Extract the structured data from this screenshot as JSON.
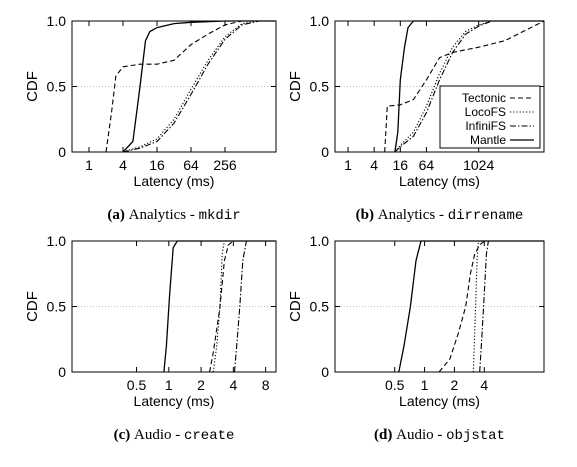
{
  "chart_data": [
    {
      "type": "line",
      "caption_label": "(a)",
      "caption_text": "Analytics - ",
      "caption_code": "mkdir",
      "xlabel": "Latency (ms)",
      "ylabel": "CDF",
      "xscale": "log2",
      "xlim": [
        0.5,
        2048
      ],
      "ylim": [
        0,
        1
      ],
      "xticks": [
        1,
        4,
        16,
        64,
        256
      ],
      "xtick_labels": [
        "1",
        "4",
        "16",
        "64",
        "256"
      ],
      "yticks": [
        0,
        0.5,
        1
      ],
      "ytick_labels": [
        "0",
        "0.5",
        "1.0"
      ],
      "grid": "horizontal-dotted",
      "series": [
        {
          "name": "Tectonic",
          "style": "dashed",
          "points": [
            [
              2,
              0
            ],
            [
              2.5,
              0.3
            ],
            [
              3,
              0.58
            ],
            [
              4,
              0.65
            ],
            [
              8,
              0.67
            ],
            [
              16,
              0.67
            ],
            [
              32,
              0.7
            ],
            [
              64,
              0.82
            ],
            [
              128,
              0.9
            ],
            [
              256,
              0.97
            ],
            [
              512,
              1
            ],
            [
              2048,
              1
            ]
          ]
        },
        {
          "name": "LocoFS",
          "style": "dotted",
          "points": [
            [
              4,
              0
            ],
            [
              8,
              0.04
            ],
            [
              16,
              0.1
            ],
            [
              32,
              0.25
            ],
            [
              64,
              0.48
            ],
            [
              128,
              0.7
            ],
            [
              256,
              0.88
            ],
            [
              512,
              0.98
            ],
            [
              1024,
              1
            ],
            [
              2048,
              1
            ]
          ]
        },
        {
          "name": "InfiniFS",
          "style": "dashdot",
          "points": [
            [
              4,
              0
            ],
            [
              8,
              0.03
            ],
            [
              16,
              0.08
            ],
            [
              32,
              0.22
            ],
            [
              64,
              0.44
            ],
            [
              128,
              0.67
            ],
            [
              256,
              0.86
            ],
            [
              512,
              0.97
            ],
            [
              1024,
              1
            ],
            [
              2048,
              1
            ]
          ]
        },
        {
          "name": "Mantle",
          "style": "solid",
          "points": [
            [
              4,
              0
            ],
            [
              6,
              0.08
            ],
            [
              8,
              0.5
            ],
            [
              10,
              0.85
            ],
            [
              12,
              0.92
            ],
            [
              16,
              0.95
            ],
            [
              32,
              0.98
            ],
            [
              64,
              0.99
            ],
            [
              256,
              1
            ],
            [
              2048,
              1
            ]
          ]
        }
      ]
    },
    {
      "type": "line",
      "caption_label": "(b)",
      "caption_text": "Analytics - ",
      "caption_code": "dirrename",
      "xlabel": "Latency (ms)",
      "ylabel": "CDF",
      "xscale": "log2",
      "xlim": [
        0.5,
        32768
      ],
      "ylim": [
        0,
        1
      ],
      "xticks": [
        1,
        4,
        16,
        64,
        1024
      ],
      "xtick_labels": [
        "1",
        "4",
        "16",
        "64",
        "1024"
      ],
      "yticks": [
        0,
        0.5,
        1
      ],
      "ytick_labels": [
        "0",
        "0.5",
        "1.0"
      ],
      "grid": "horizontal-dotted",
      "legend": "bottom-right",
      "series": [
        {
          "name": "Tectonic",
          "style": "dashed",
          "points": [
            [
              7,
              0
            ],
            [
              8,
              0.35
            ],
            [
              16,
              0.36
            ],
            [
              32,
              0.4
            ],
            [
              64,
              0.55
            ],
            [
              128,
              0.72
            ],
            [
              256,
              0.76
            ],
            [
              512,
              0.78
            ],
            [
              1024,
              0.8
            ],
            [
              4096,
              0.85
            ],
            [
              16384,
              0.95
            ],
            [
              32768,
              1
            ]
          ]
        },
        {
          "name": "LocoFS",
          "style": "dotted",
          "points": [
            [
              12,
              0
            ],
            [
              16,
              0.05
            ],
            [
              32,
              0.15
            ],
            [
              64,
              0.35
            ],
            [
              128,
              0.6
            ],
            [
              256,
              0.8
            ],
            [
              512,
              0.92
            ],
            [
              1024,
              0.97
            ],
            [
              2048,
              1
            ],
            [
              32768,
              1
            ]
          ]
        },
        {
          "name": "InfiniFS",
          "style": "dashdot",
          "points": [
            [
              12,
              0
            ],
            [
              16,
              0.04
            ],
            [
              32,
              0.12
            ],
            [
              64,
              0.3
            ],
            [
              128,
              0.55
            ],
            [
              256,
              0.76
            ],
            [
              512,
              0.9
            ],
            [
              1024,
              0.96
            ],
            [
              2048,
              1
            ],
            [
              32768,
              1
            ]
          ]
        },
        {
          "name": "Mantle",
          "style": "solid",
          "points": [
            [
              12,
              0
            ],
            [
              14,
              0.15
            ],
            [
              16,
              0.55
            ],
            [
              20,
              0.8
            ],
            [
              24,
              0.95
            ],
            [
              32,
              1
            ],
            [
              32768,
              1
            ]
          ]
        }
      ]
    },
    {
      "type": "line",
      "caption_label": "(c)",
      "caption_text": "Audio - ",
      "caption_code": "create",
      "xlabel": "Latency (ms)",
      "ylabel": "CDF",
      "xscale": "log2",
      "xlim": [
        0.125,
        10
      ],
      "ylim": [
        0,
        1
      ],
      "xticks": [
        0.5,
        1,
        2,
        4,
        8
      ],
      "xtick_labels": [
        "0.5",
        "1",
        "2",
        "4",
        "8"
      ],
      "yticks": [
        0,
        0.5,
        1
      ],
      "ytick_labels": [
        "0",
        "0.5",
        "1.0"
      ],
      "grid": "horizontal-dotted",
      "series": [
        {
          "name": "Tectonic",
          "style": "dashed",
          "points": [
            [
              2.4,
              0
            ],
            [
              2.6,
              0.15
            ],
            [
              3,
              0.5
            ],
            [
              3.3,
              0.85
            ],
            [
              3.6,
              0.97
            ],
            [
              4,
              1
            ],
            [
              10,
              1
            ]
          ]
        },
        {
          "name": "LocoFS",
          "style": "dotted",
          "points": [
            [
              2.6,
              0
            ],
            [
              2.8,
              0.2
            ],
            [
              3,
              0.5
            ],
            [
              3.15,
              0.9
            ],
            [
              3.3,
              1
            ],
            [
              10,
              1
            ]
          ]
        },
        {
          "name": "InfiniFS",
          "style": "dashdot",
          "points": [
            [
              4.1,
              0
            ],
            [
              4.3,
              0.2
            ],
            [
              4.6,
              0.5
            ],
            [
              4.9,
              0.85
            ],
            [
              5.3,
              1
            ],
            [
              10,
              1
            ]
          ]
        },
        {
          "name": "Mantle",
          "style": "solid",
          "points": [
            [
              0.9,
              0
            ],
            [
              0.95,
              0.2
            ],
            [
              1.02,
              0.6
            ],
            [
              1.1,
              0.95
            ],
            [
              1.2,
              1
            ],
            [
              10,
              1
            ]
          ]
        }
      ]
    },
    {
      "type": "line",
      "caption_label": "(d)",
      "caption_text": "Audio - ",
      "caption_code": "objstat",
      "xlabel": "Latency (ms)",
      "ylabel": "CDF",
      "xscale": "log2",
      "xlim": [
        0.125,
        16
      ],
      "ylim": [
        0,
        1
      ],
      "xticks": [
        0.5,
        1,
        2,
        4
      ],
      "xtick_labels": [
        "0.5",
        "1",
        "2",
        "4"
      ],
      "yticks": [
        0,
        0.5,
        1
      ],
      "ytick_labels": [
        "0",
        "0.5",
        "1.0"
      ],
      "grid": "horizontal-dotted",
      "series": [
        {
          "name": "Tectonic",
          "style": "dashed",
          "points": [
            [
              1.4,
              0
            ],
            [
              1.8,
              0.1
            ],
            [
              2.2,
              0.3
            ],
            [
              2.6,
              0.5
            ],
            [
              2.9,
              0.75
            ],
            [
              3.2,
              0.9
            ],
            [
              3.6,
              0.97
            ],
            [
              4,
              1
            ],
            [
              16,
              1
            ]
          ]
        },
        {
          "name": "LocoFS",
          "style": "dotted",
          "points": [
            [
              3.1,
              0
            ],
            [
              3.2,
              0.3
            ],
            [
              3.3,
              0.6
            ],
            [
              3.4,
              0.9
            ],
            [
              3.5,
              1
            ],
            [
              16,
              1
            ]
          ]
        },
        {
          "name": "InfiniFS",
          "style": "dashdot",
          "points": [
            [
              3.6,
              0
            ],
            [
              3.8,
              0.3
            ],
            [
              4,
              0.6
            ],
            [
              4.2,
              0.9
            ],
            [
              4.4,
              1
            ],
            [
              16,
              1
            ]
          ]
        },
        {
          "name": "Mantle",
          "style": "solid",
          "points": [
            [
              0.55,
              0
            ],
            [
              0.62,
              0.2
            ],
            [
              0.72,
              0.5
            ],
            [
              0.82,
              0.85
            ],
            [
              0.92,
              1
            ],
            [
              16,
              1
            ]
          ]
        }
      ]
    }
  ]
}
